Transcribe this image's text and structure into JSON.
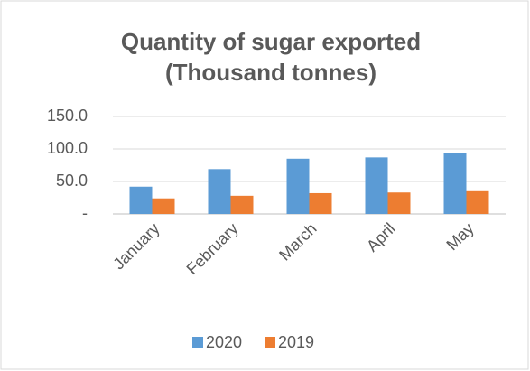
{
  "chart_data": {
    "type": "bar",
    "title": [
      "Quantity of sugar exported",
      "(Thousand tonnes)"
    ],
    "categories": [
      "January",
      "February",
      "March",
      "April",
      "May"
    ],
    "series": [
      {
        "name": "2020",
        "color": "#5b9bd5",
        "values": [
          42,
          69,
          85,
          87,
          94
        ]
      },
      {
        "name": "2019",
        "color": "#ed7d31",
        "values": [
          24,
          28,
          32,
          33,
          35
        ]
      }
    ],
    "ylim": [
      0,
      150
    ],
    "yticks": [
      {
        "value": 0,
        "label": "-"
      },
      {
        "value": 50,
        "label": "50.0"
      },
      {
        "value": 100,
        "label": "100.0"
      },
      {
        "value": 150,
        "label": "150.0"
      }
    ],
    "grid": true,
    "legend": "bottom"
  }
}
